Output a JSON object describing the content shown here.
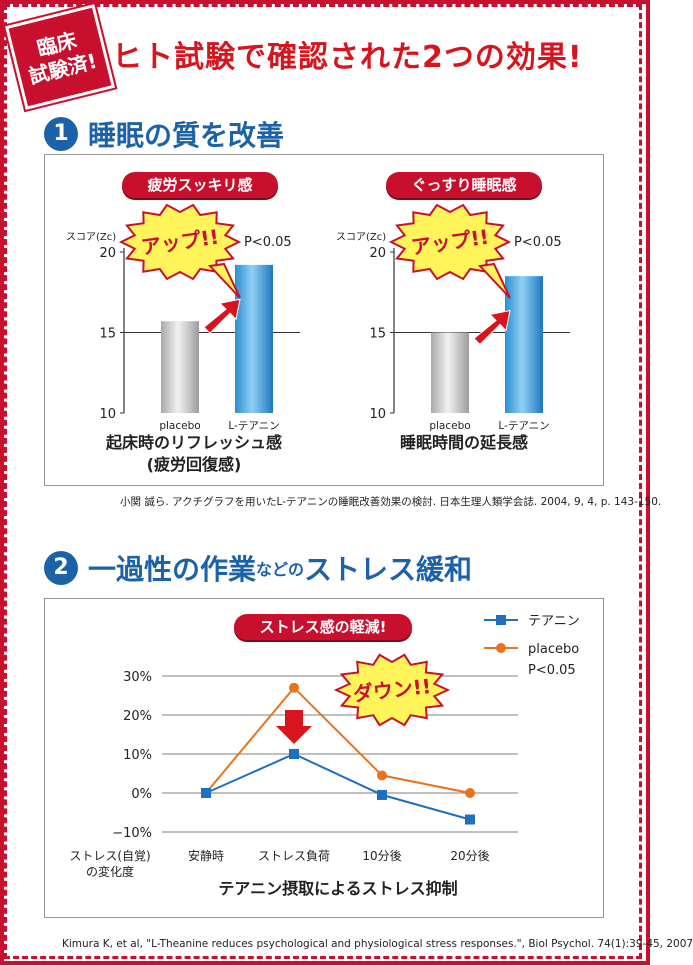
{
  "badge": {
    "line1": "臨床",
    "line2": "試験済!"
  },
  "headline": "ヒト試験で確認された2つの効果!",
  "section1": {
    "num": "1",
    "title": "睡眠の質を改善",
    "citation": "小関 誠ら. アクチグラフを用いたL-テアニンの睡眠改善効果の検討. 日本生理人類学会誌. 2004, 9, 4, p. 143-150."
  },
  "section2": {
    "num": "2",
    "title_a": "一過性の作業",
    "title_b": "などの",
    "title_c": "ストレス緩和",
    "citation": "Kimura K, et al, \"L-Theanine reduces psychological and physiological stress responses.\", Biol Psychol. 74(1):39-45, 2007"
  },
  "colors": {
    "red": "#c8102e",
    "blue": "#1c62a8",
    "orange": "#e8731c",
    "lineblue": "#1f6fc0"
  },
  "chart_data": [
    {
      "type": "bar",
      "pill": "疲労スッキリ感",
      "ylabel": "スコア(Zc)",
      "categories": [
        "placebo",
        "L-テアニン"
      ],
      "values": [
        15.7,
        19.2
      ],
      "ylim": [
        10,
        20
      ],
      "yticks": [
        "10",
        "15",
        "20"
      ],
      "callout": "アップ!!",
      "pvalue": "P<0.05",
      "caption1": "起床時のリフレッシュ感",
      "caption2": "(疲労回復感)"
    },
    {
      "type": "bar",
      "pill": "ぐっすり睡眠感",
      "ylabel": "スコア(Zc)",
      "categories": [
        "placebo",
        "L-テアニン"
      ],
      "values": [
        15.0,
        18.5
      ],
      "ylim": [
        10,
        20
      ],
      "yticks": [
        "10",
        "15",
        "20"
      ],
      "callout": "アップ!!",
      "pvalue": "P<0.05",
      "caption1": "睡眠時間の延長感",
      "caption2": ""
    },
    {
      "type": "line",
      "pill": "ストレス感の軽減!",
      "categories": [
        "安静時",
        "ストレス負荷",
        "10分後",
        "20分後"
      ],
      "series": [
        {
          "name": "テアニン",
          "values": [
            0,
            10,
            -0.5,
            -6.8
          ],
          "color": "#1f6fc0"
        },
        {
          "name": "placebo",
          "values": [
            0,
            27,
            4.5,
            0
          ],
          "color": "#e8731c"
        }
      ],
      "ylim": [
        -10,
        30
      ],
      "yticks": [
        "30%",
        "20%",
        "10%",
        "0%",
        "−10%"
      ],
      "ylabel1": "ストレス(自覚)",
      "ylabel2": "の変化度",
      "xlabel": "テアニン摂取によるストレス抑制",
      "callout": "ダウン!!",
      "pvalue": "P<0.05"
    }
  ]
}
